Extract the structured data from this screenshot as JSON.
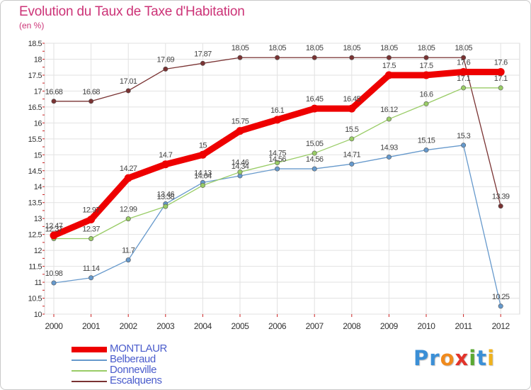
{
  "title": "Evolution du Taux de Taxe d'Habitation",
  "subtitle": "(en %)",
  "logo": {
    "text": "Proxiti",
    "letters": [
      {
        "ch": "P",
        "color": "#3b8fd6"
      },
      {
        "ch": "r",
        "color": "#3b8fd6"
      },
      {
        "ch": "o",
        "color": "#f08a1c"
      },
      {
        "ch": "x",
        "color": "#e2332b"
      },
      {
        "ch": "i",
        "color": "#5aa832"
      },
      {
        "ch": "t",
        "color": "#3b8fd6"
      },
      {
        "ch": "i",
        "color": "#f0b21c"
      }
    ]
  },
  "chart_data": {
    "type": "line",
    "title": "Evolution du Taux de Taxe d'Habitation",
    "ylabel": "(en %)",
    "xlabel": "",
    "x": [
      "2000",
      "2001",
      "2002",
      "2003",
      "2004",
      "2005",
      "2006",
      "2007",
      "2008",
      "2009",
      "2010",
      "2011",
      "2012"
    ],
    "ylim": [
      10,
      18.5
    ],
    "yticks": [
      "10",
      "10.5",
      "11",
      "11.5",
      "12",
      "12.5",
      "13",
      "13.5",
      "14",
      "14.5",
      "15",
      "15.5",
      "16",
      "16.5",
      "17",
      "17.5",
      "18",
      "18.5"
    ],
    "grid": true,
    "legend_position": "bottom-left",
    "series": [
      {
        "name": "MONTLAUR",
        "color": "#ee0000",
        "values": [
          12.47,
          12.97,
          14.27,
          14.7,
          15,
          15.75,
          16.1,
          16.45,
          16.45,
          17.5,
          17.5,
          17.6,
          17.6
        ],
        "labels": [
          "12.47",
          "12.97",
          "14.27",
          "14.7",
          "15",
          "15.75",
          "16.1",
          "16.45",
          "16.45",
          "17.5",
          "17.5",
          "17.6",
          "17.6"
        ]
      },
      {
        "name": "Belberaud",
        "color": "#6699cc",
        "values": [
          10.98,
          11.14,
          11.7,
          13.46,
          14.13,
          14.34,
          14.56,
          14.56,
          14.71,
          14.93,
          15.15,
          15.3,
          10.25
        ],
        "labels": [
          "10.98",
          "11.14",
          "11.7",
          "13.46",
          "14.13",
          "14.34",
          "14.56",
          "14.56",
          "14.71",
          "14.93",
          "15.15",
          "15.3",
          "10.25"
        ]
      },
      {
        "name": "Donneville",
        "color": "#99cc66",
        "values": [
          12.37,
          12.37,
          12.99,
          13.38,
          14.04,
          14.46,
          14.75,
          15.05,
          15.5,
          16.12,
          16.6,
          17.1,
          17.1
        ],
        "labels": [
          "12.37",
          "12.37",
          "12.99",
          "13.38",
          "14.04",
          "14.46",
          "14.75",
          "15.05",
          "15.5",
          "16.12",
          "16.6",
          "17.1",
          "17.1"
        ]
      },
      {
        "name": "Escalquens",
        "color": "#7a3333",
        "values": [
          16.68,
          16.68,
          17.01,
          17.69,
          17.87,
          18.05,
          18.05,
          18.05,
          18.05,
          18.05,
          18.05,
          18.05,
          13.39
        ],
        "labels": [
          "16.68",
          "16.68",
          "17.01",
          "17.69",
          "17.87",
          "18.05",
          "18.05",
          "18.05",
          "18.05",
          "18.05",
          "18.05",
          "18.05",
          "13.39"
        ]
      }
    ]
  }
}
